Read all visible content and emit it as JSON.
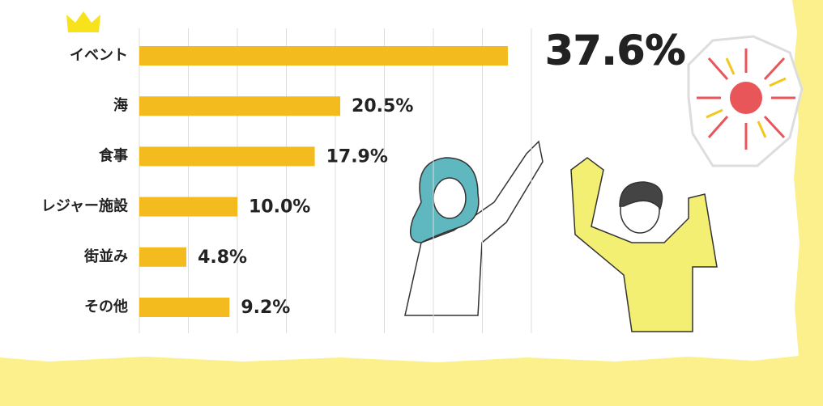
{
  "chart_data": {
    "type": "bar",
    "orientation": "horizontal",
    "categories": [
      "イベント",
      "海",
      "食事",
      "レジャー施設",
      "街並み",
      "その他"
    ],
    "values": [
      37.6,
      20.5,
      17.9,
      10.0,
      4.8,
      9.2
    ],
    "value_labels": [
      "37.6%",
      "20.5%",
      "17.9%",
      "10.0%",
      "4.8%",
      "9.2%"
    ],
    "color": "#f3bb1d",
    "xlim": [
      0,
      40
    ],
    "xticks": [
      0,
      5,
      10,
      15,
      20,
      25,
      30,
      35,
      40
    ],
    "grid": true
  }
}
